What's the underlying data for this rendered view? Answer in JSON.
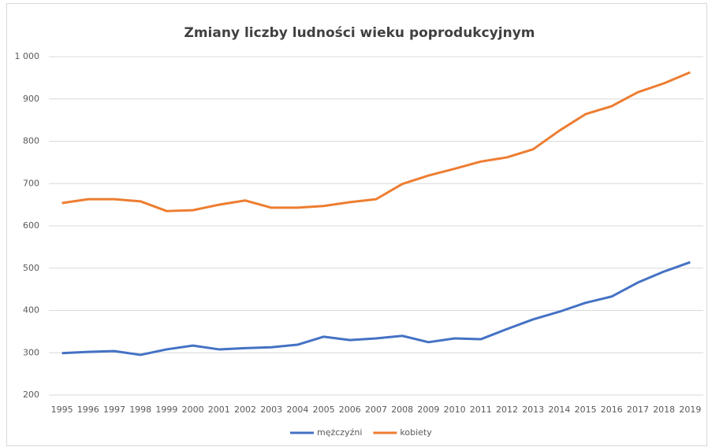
{
  "chart_data": {
    "type": "line",
    "title": "Zmiany liczby ludności wieku poprodukcyjnym",
    "categories": [
      "1995",
      "1996",
      "1997",
      "1998",
      "1999",
      "2000",
      "2001",
      "2002",
      "2003",
      "2004",
      "2005",
      "2006",
      "2007",
      "2008",
      "2009",
      "2010",
      "2011",
      "2012",
      "2013",
      "2014",
      "2015",
      "2016",
      "2017",
      "2018",
      "2019"
    ],
    "series": [
      {
        "name": "mężczyźni",
        "color": "#4472c4",
        "values": [
          299,
          302,
          304,
          295,
          308,
          317,
          308,
          311,
          313,
          319,
          338,
          330,
          334,
          340,
          325,
          334,
          332,
          356,
          379,
          397,
          418,
          433,
          466,
          492,
          514
        ]
      },
      {
        "name": "kobiety",
        "color": "#ed7d31",
        "values": [
          654,
          663,
          663,
          658,
          635,
          637,
          650,
          660,
          643,
          643,
          647,
          656,
          663,
          699,
          719,
          735,
          752,
          762,
          781,
          825,
          864,
          883,
          916,
          937,
          963
        ]
      }
    ],
    "ylim": [
      200,
      1000
    ],
    "yticks": [
      200,
      300,
      400,
      500,
      600,
      700,
      800,
      900,
      {
        "value": 1000,
        "label": "1 000"
      }
    ],
    "grid": true,
    "legend": "bottom"
  }
}
